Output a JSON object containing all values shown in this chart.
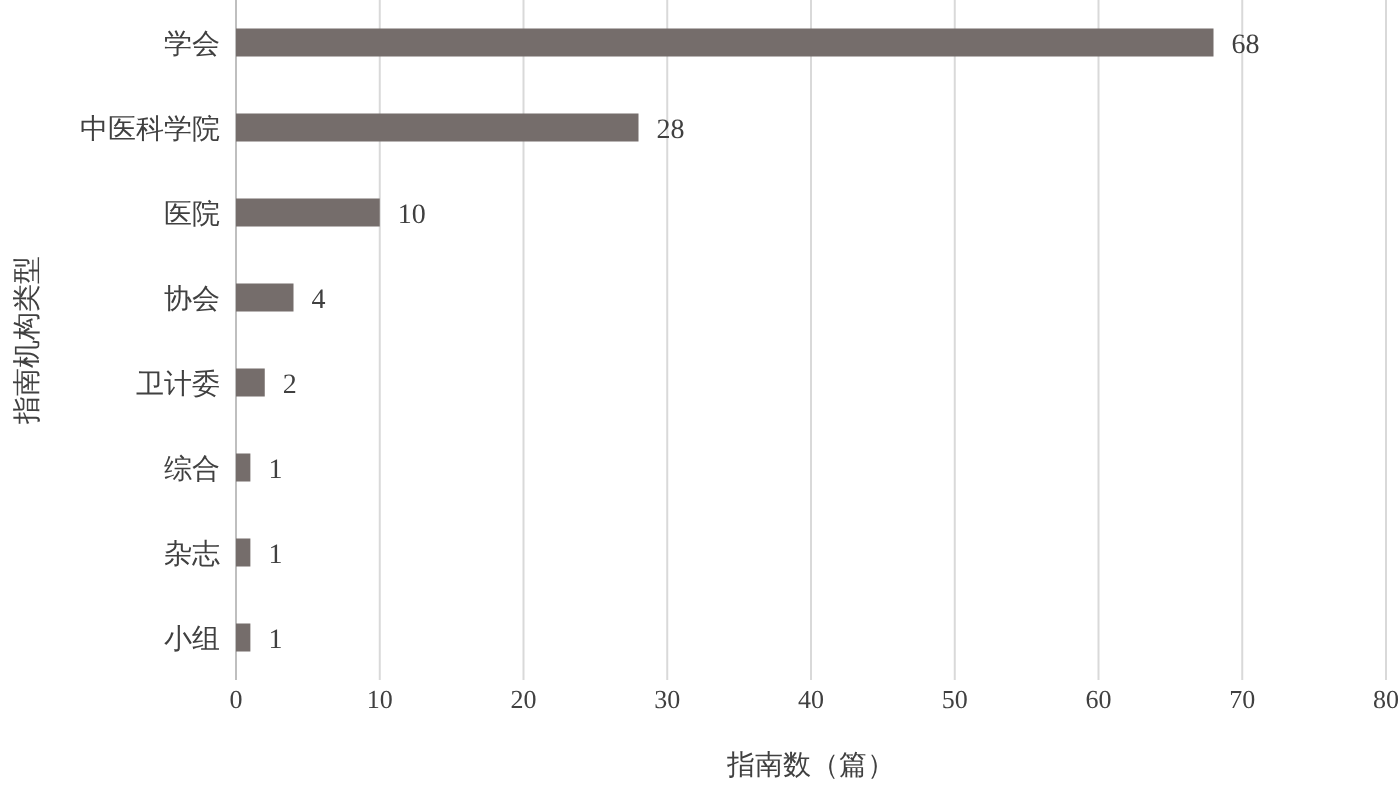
{
  "chart_data": {
    "type": "bar",
    "orientation": "horizontal",
    "xlabel": "指南数（篇）",
    "ylabel": "指南机构类型",
    "categories": [
      "学会",
      "中医科学院",
      "医院",
      "协会",
      "卫计委",
      "综合",
      "杂志",
      "小组"
    ],
    "values": [
      68,
      28,
      10,
      4,
      2,
      1,
      1,
      1
    ],
    "color": "#756d6b",
    "xlim": [
      0,
      80
    ],
    "xticks": [
      0,
      10,
      20,
      30,
      40,
      50,
      60,
      70,
      80
    ],
    "grid": "x",
    "data_labels": true
  }
}
